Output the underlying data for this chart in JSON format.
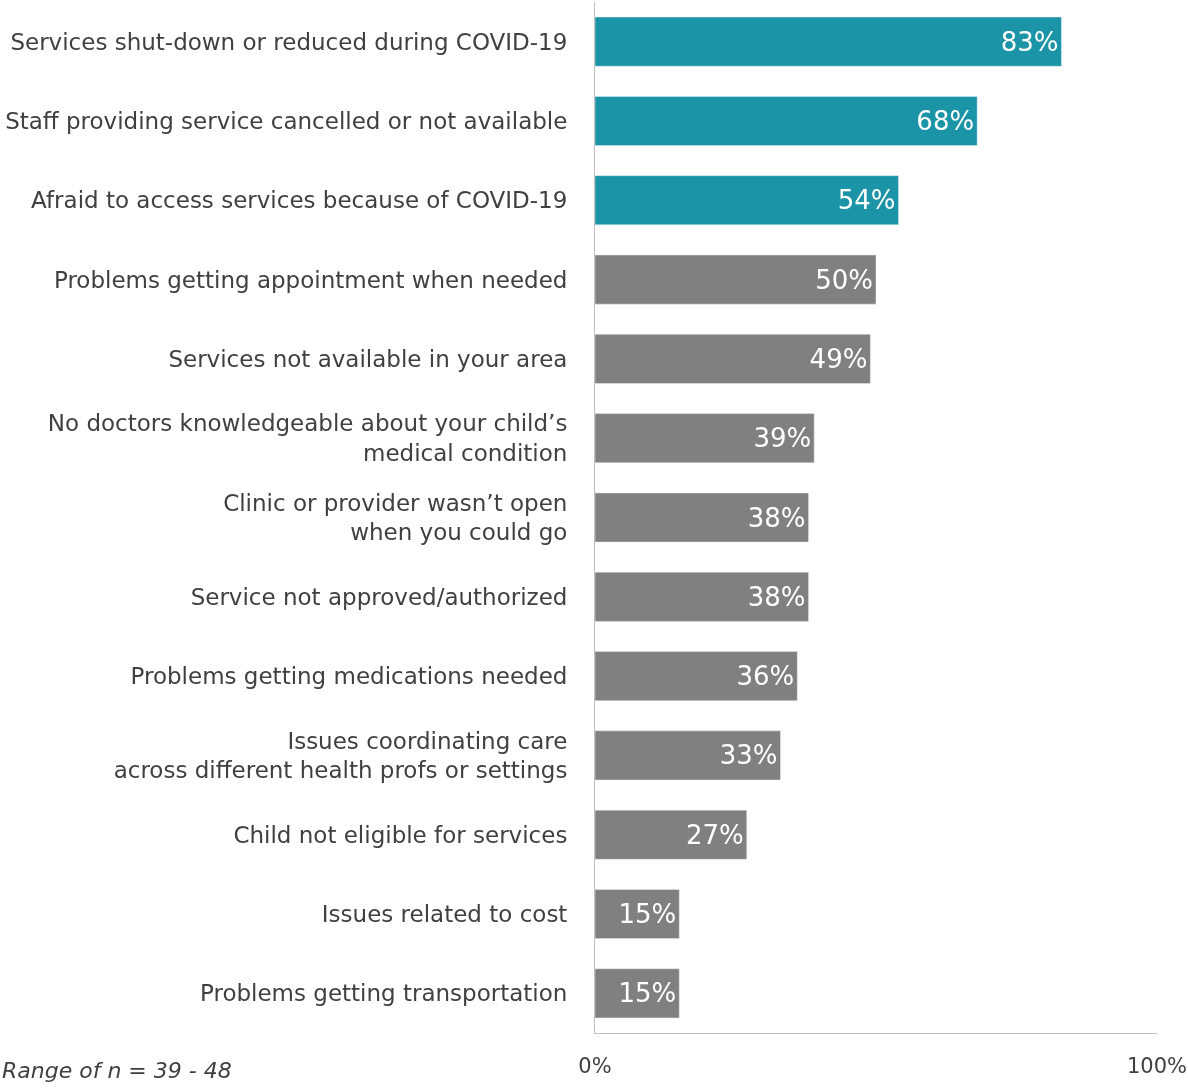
{
  "chart_data": {
    "type": "bar",
    "orientation": "horizontal",
    "categories": [
      "Services shut-down or reduced during COVID-19",
      "Staff providing service cancelled or not available",
      "Afraid to access services because of COVID-19",
      "Problems getting appointment when needed",
      "Services not available in your area",
      "No doctors knowledgeable about your child’s\nmedical condition",
      "Clinic or provider wasn’t open\nwhen you could go",
      "Service not approved/authorized",
      "Problems getting medications needed",
      "Issues coordinating care\nacross different health profs or settings",
      "Child not eligible for services",
      "Issues related to cost",
      "Problems getting transportation"
    ],
    "values": [
      83,
      68,
      54,
      50,
      49,
      39,
      38,
      38,
      36,
      33,
      27,
      15,
      15
    ],
    "colors": [
      "#1a94a6",
      "#1a94a6",
      "#1a94a6",
      "#808080",
      "#808080",
      "#808080",
      "#808080",
      "#808080",
      "#808080",
      "#808080",
      "#808080",
      "#808080",
      "#808080"
    ],
    "value_labels": [
      "83%",
      "68%",
      "54%",
      "50%",
      "49%",
      "39%",
      "38%",
      "38%",
      "36%",
      "33%",
      "27%",
      "15%",
      "15%"
    ],
    "xlim": [
      0,
      100
    ],
    "xticks": [
      {
        "value": 0,
        "label": "0%"
      },
      {
        "value": 100,
        "label": "100%"
      }
    ],
    "annotations": [
      "Range of n = 39 - 48"
    ]
  }
}
